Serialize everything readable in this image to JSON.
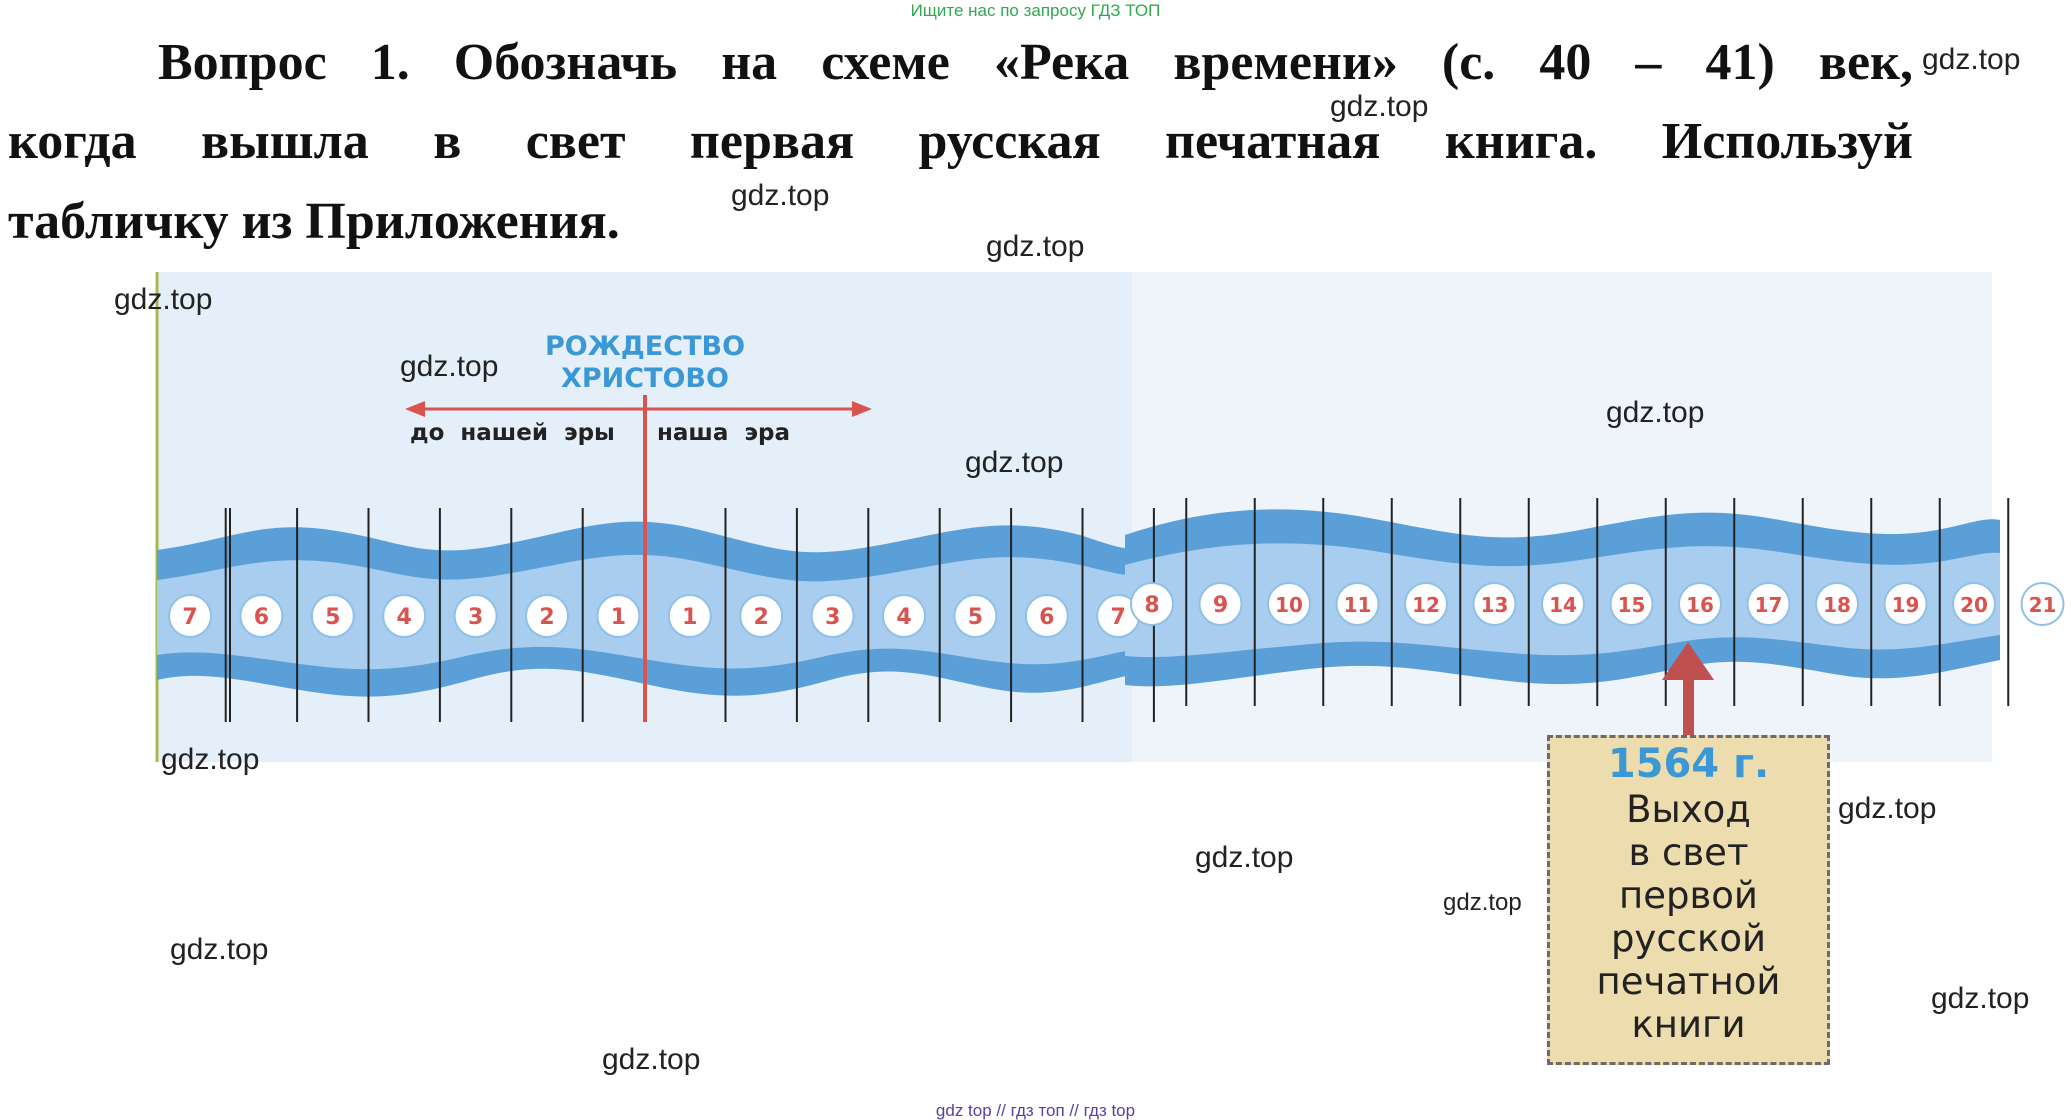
{
  "header_note": "Ищите нас по запросу ГДЗ ТОП",
  "footer_note": "gdz top  //  гдз топ  //  гдз top",
  "question": {
    "line1": "Вопрос 1.  Обозначь на схеме «Река времени» (с. 40 – 41) век,",
    "line2": "когда вышла в свет первая русская печатная книга. Используй",
    "line3": "табличку из Приложения."
  },
  "timeline": {
    "birth_label_line1": "РОЖДЕСТВО",
    "birth_label_line2": "ХРИСТОВО",
    "bc_label": "до нашей эры",
    "ad_label": "наша эра",
    "bc_centuries": [
      "7",
      "6",
      "5",
      "4",
      "3",
      "2",
      "1"
    ],
    "ad_centuries": [
      "1",
      "2",
      "3",
      "4",
      "5",
      "6",
      "7",
      "8",
      "9",
      "10",
      "11",
      "12",
      "13",
      "14",
      "15",
      "16",
      "17",
      "18",
      "19",
      "20",
      "21"
    ],
    "highlighted_century": "16",
    "colors": {
      "river": "#5b9fd8",
      "river_light": "#a9cdee",
      "marker": "#d9534f",
      "birth_text": "#3b98d4",
      "background_left": "#e4eff9",
      "background_right": "#eef4fa"
    }
  },
  "book_card": {
    "year": "1564 г.",
    "lines": [
      "Выход",
      "в свет",
      "первой",
      "русской",
      "печатной",
      "книги"
    ]
  },
  "watermarks": [
    "gdz.top"
  ]
}
